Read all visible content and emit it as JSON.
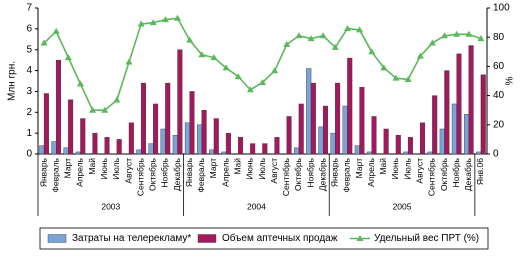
{
  "chart_data": {
    "type": "bar-line",
    "categories": [
      "Январь",
      "Февраль",
      "Март",
      "Апрель",
      "Май",
      "Июнь",
      "Июль",
      "Август",
      "Сентябрь",
      "Октябрь",
      "Ноябрь",
      "Декабрь",
      "Январь",
      "Февраль",
      "Март",
      "Апрель",
      "Май",
      "Июнь",
      "Июль",
      "Август",
      "Сентябрь",
      "Октябрь",
      "Ноябрь",
      "Декабрь",
      "Январь",
      "Февраль",
      "Март",
      "Апрель",
      "Май",
      "Июнь",
      "Июль",
      "Август",
      "Сентябрь",
      "Октябрь",
      "Ноябрь",
      "Декабрь",
      "Янв.06"
    ],
    "x_groups": [
      "2003",
      "2004",
      "2005"
    ],
    "y_label": "Млн грн.",
    "y2_label": "%",
    "ylim": [
      0,
      7
    ],
    "yticks": [
      0,
      1,
      2,
      3,
      4,
      5,
      6,
      7
    ],
    "y2lim": [
      0,
      100
    ],
    "y2ticks": [
      0,
      20,
      40,
      60,
      80,
      100
    ],
    "series": [
      {
        "name": "Затраты на телерекламу*",
        "type": "bar",
        "color": "#7aa3d8",
        "values": [
          0.4,
          0.6,
          0.3,
          0.1,
          0,
          0,
          0,
          0,
          0.2,
          0.5,
          1.2,
          0.9,
          1.5,
          1.4,
          0.2,
          0.1,
          0,
          0,
          0,
          0,
          0,
          0.3,
          4.1,
          1.3,
          1.0,
          2.3,
          0.4,
          0.1,
          0,
          0,
          0.1,
          0,
          0.1,
          1.2,
          2.4,
          1.9,
          0.1
        ]
      },
      {
        "name": "Объем аптечных продаж",
        "type": "bar",
        "color": "#a3195b",
        "values": [
          2.9,
          4.5,
          2.6,
          1.7,
          1.0,
          0.8,
          0.7,
          1.5,
          3.4,
          2.4,
          3.4,
          5.0,
          3.0,
          2.1,
          1.7,
          1.0,
          0.8,
          0.5,
          0.5,
          0.8,
          1.8,
          2.4,
          3.4,
          2.3,
          3.4,
          4.6,
          3.2,
          1.8,
          1.2,
          0.9,
          0.8,
          1.5,
          2.8,
          4.0,
          4.8,
          5.2,
          3.8
        ]
      },
      {
        "name": "Удельный вес ПРТ (%)",
        "type": "line",
        "axis": "y2",
        "color": "#5cb85c",
        "values": [
          76,
          84,
          66,
          48,
          30,
          30,
          37,
          63,
          89,
          90,
          92,
          93,
          78,
          68,
          66,
          59,
          53,
          44,
          49,
          57,
          75,
          81,
          79,
          81,
          73,
          86,
          85,
          70,
          59,
          52,
          51,
          67,
          76,
          81,
          82,
          82,
          79
        ]
      }
    ]
  }
}
